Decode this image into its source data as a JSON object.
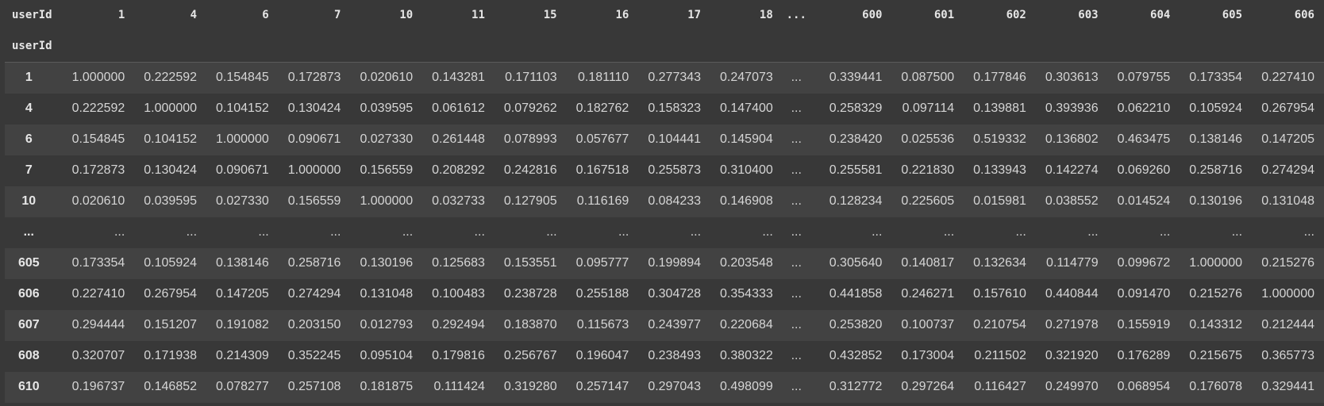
{
  "table": {
    "index_name": "userId",
    "columns_name": "userId",
    "columns": [
      "1",
      "4",
      "6",
      "7",
      "10",
      "11",
      "15",
      "16",
      "17",
      "18",
      "...",
      "600",
      "601",
      "602",
      "603",
      "604",
      "605",
      "606"
    ],
    "rows": [
      {
        "index": "1",
        "values": [
          "1.000000",
          "0.222592",
          "0.154845",
          "0.172873",
          "0.020610",
          "0.143281",
          "0.171103",
          "0.181110",
          "0.277343",
          "0.247073",
          "...",
          "0.339441",
          "0.087500",
          "0.177846",
          "0.303613",
          "0.079755",
          "0.173354",
          "0.227410"
        ]
      },
      {
        "index": "4",
        "values": [
          "0.222592",
          "1.000000",
          "0.104152",
          "0.130424",
          "0.039595",
          "0.061612",
          "0.079262",
          "0.182762",
          "0.158323",
          "0.147400",
          "...",
          "0.258329",
          "0.097114",
          "0.139881",
          "0.393936",
          "0.062210",
          "0.105924",
          "0.267954"
        ]
      },
      {
        "index": "6",
        "values": [
          "0.154845",
          "0.104152",
          "1.000000",
          "0.090671",
          "0.027330",
          "0.261448",
          "0.078993",
          "0.057677",
          "0.104441",
          "0.145904",
          "...",
          "0.238420",
          "0.025536",
          "0.519332",
          "0.136802",
          "0.463475",
          "0.138146",
          "0.147205"
        ]
      },
      {
        "index": "7",
        "values": [
          "0.172873",
          "0.130424",
          "0.090671",
          "1.000000",
          "0.156559",
          "0.208292",
          "0.242816",
          "0.167518",
          "0.255873",
          "0.310400",
          "...",
          "0.255581",
          "0.221830",
          "0.133943",
          "0.142274",
          "0.069260",
          "0.258716",
          "0.274294"
        ]
      },
      {
        "index": "10",
        "values": [
          "0.020610",
          "0.039595",
          "0.027330",
          "0.156559",
          "1.000000",
          "0.032733",
          "0.127905",
          "0.116169",
          "0.084233",
          "0.146908",
          "...",
          "0.128234",
          "0.225605",
          "0.015981",
          "0.038552",
          "0.014524",
          "0.130196",
          "0.131048"
        ]
      },
      {
        "index": "...",
        "values": [
          "...",
          "...",
          "...",
          "...",
          "...",
          "...",
          "...",
          "...",
          "...",
          "...",
          "...",
          "...",
          "...",
          "...",
          "...",
          "...",
          "...",
          "..."
        ]
      },
      {
        "index": "605",
        "values": [
          "0.173354",
          "0.105924",
          "0.138146",
          "0.258716",
          "0.130196",
          "0.125683",
          "0.153551",
          "0.095777",
          "0.199894",
          "0.203548",
          "...",
          "0.305640",
          "0.140817",
          "0.132634",
          "0.114779",
          "0.099672",
          "1.000000",
          "0.215276"
        ]
      },
      {
        "index": "606",
        "values": [
          "0.227410",
          "0.267954",
          "0.147205",
          "0.274294",
          "0.131048",
          "0.100483",
          "0.238728",
          "0.255188",
          "0.304728",
          "0.354333",
          "...",
          "0.441858",
          "0.246271",
          "0.157610",
          "0.440844",
          "0.091470",
          "0.215276",
          "1.000000"
        ]
      },
      {
        "index": "607",
        "values": [
          "0.294444",
          "0.151207",
          "0.191082",
          "0.203150",
          "0.012793",
          "0.292494",
          "0.183870",
          "0.115673",
          "0.243977",
          "0.220684",
          "...",
          "0.253820",
          "0.100737",
          "0.210754",
          "0.271978",
          "0.155919",
          "0.143312",
          "0.212444"
        ]
      },
      {
        "index": "608",
        "values": [
          "0.320707",
          "0.171938",
          "0.214309",
          "0.352245",
          "0.095104",
          "0.179816",
          "0.256767",
          "0.196047",
          "0.238493",
          "0.380322",
          "...",
          "0.432852",
          "0.173004",
          "0.211502",
          "0.321920",
          "0.176289",
          "0.215675",
          "0.365773"
        ]
      },
      {
        "index": "610",
        "values": [
          "0.196737",
          "0.146852",
          "0.078277",
          "0.257108",
          "0.181875",
          "0.111424",
          "0.319280",
          "0.257147",
          "0.297043",
          "0.498099",
          "...",
          "0.312772",
          "0.297264",
          "0.116427",
          "0.249970",
          "0.068954",
          "0.176078",
          "0.329441"
        ]
      }
    ]
  }
}
